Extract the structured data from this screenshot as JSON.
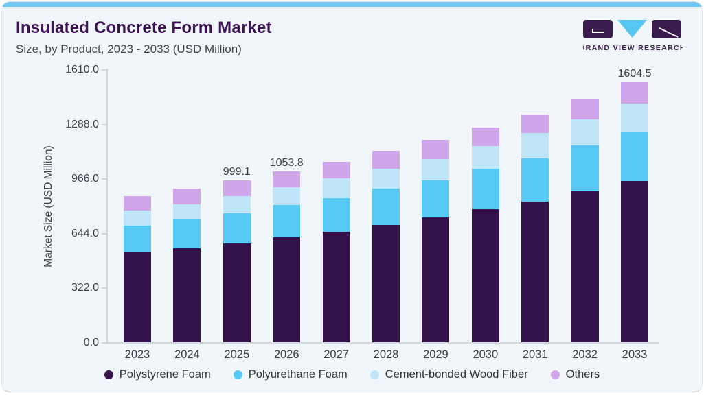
{
  "header": {
    "title": "Insulated Concrete Form Market",
    "subtitle": "Size, by Product, 2023 - 2033 (USD Million)"
  },
  "logo": {
    "wordmark": "GRAND VIEW RESEARCH"
  },
  "colors": {
    "accent_top_bar": "#6fc7f0",
    "card_background": "#f0f6fa",
    "title_text": "#3e1356",
    "body_text": "#3a3f45",
    "axis_line": "#d2d9de",
    "logo_purple": "#3a1b4d",
    "logo_blue": "#56c7f2"
  },
  "chart_data": {
    "type": "bar",
    "stacked": true,
    "grid": false,
    "legend_position": "bottom",
    "ylabel": "Market Size (USD Million)",
    "ylim": [
      0,
      1610
    ],
    "y_ticks": [
      "1610.0",
      "1288.0",
      "966.0",
      "644.0",
      "322.0",
      "0.0"
    ],
    "categories": [
      "2023",
      "2024",
      "2025",
      "2026",
      "2027",
      "2028",
      "2029",
      "2030",
      "2031",
      "2032",
      "2033"
    ],
    "series": [
      {
        "name": "Polystyrene Foam",
        "color": "#331349",
        "values": [
          555,
          578,
          609,
          647,
          682,
          722,
          770,
          822,
          870,
          930,
          993
        ]
      },
      {
        "name": "Polyurethane Foam",
        "color": "#58c8f4",
        "values": [
          166,
          179,
          185,
          199,
          206,
          226,
          231,
          250,
          265,
          284,
          305
        ]
      },
      {
        "name": "Cement-bonded Wood Fiber",
        "color": "#bfe6f8",
        "values": [
          91,
          93,
          106,
          110,
          123,
          124,
          130,
          137,
          155,
          161,
          175
        ]
      },
      {
        "name": "Others",
        "color": "#cfa6ea",
        "values": [
          90,
          98,
          99.1,
          97.8,
          103,
          110,
          117,
          118,
          117,
          129,
          131.5
        ]
      }
    ],
    "totals": [
      902,
      948,
      999.1,
      1053.8,
      1114,
      1182,
      1248,
      1327,
      1407,
      1504,
      1604.5
    ],
    "bar_labels": [
      {
        "index": 2,
        "text": "999.1"
      },
      {
        "index": 3,
        "text": "1053.8"
      },
      {
        "index": 10,
        "text": "1604.5"
      }
    ]
  }
}
